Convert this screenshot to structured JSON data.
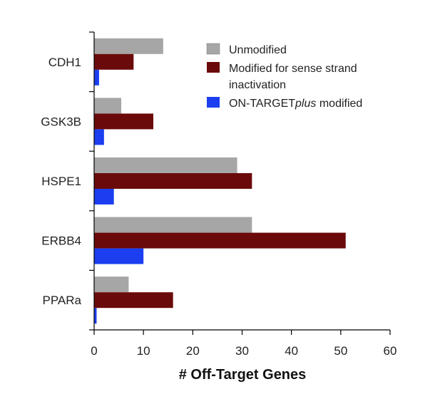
{
  "chart_data": {
    "type": "bar",
    "orientation": "horizontal",
    "categories": [
      "CDH1",
      "GSK3B",
      "HSPE1",
      "ERBB4",
      "PPARa"
    ],
    "series": [
      {
        "name": "Unmodified",
        "values": [
          14,
          5.5,
          29,
          32,
          7
        ],
        "color": "#a6a6a6"
      },
      {
        "name": "Modified for sense strand inactivation",
        "name_lines": [
          "Modified for sense strand",
          "inactivation"
        ],
        "values": [
          8,
          12,
          32,
          51,
          16
        ],
        "color": "#6b0a0a"
      },
      {
        "name": "ON-TARGETplus modified",
        "name_parts": [
          "ON-TARGET",
          "plus",
          " modified"
        ],
        "values": [
          1,
          2,
          4,
          10,
          0.5
        ],
        "color": "#1a3ef0"
      }
    ],
    "xlabel": "# Off-Target Genes",
    "ylabel": "",
    "title": "",
    "xlim": [
      0,
      60
    ],
    "xticks": [
      0,
      10,
      20,
      30,
      40,
      50,
      60
    ],
    "grid": false,
    "legend_position": "top-right"
  }
}
